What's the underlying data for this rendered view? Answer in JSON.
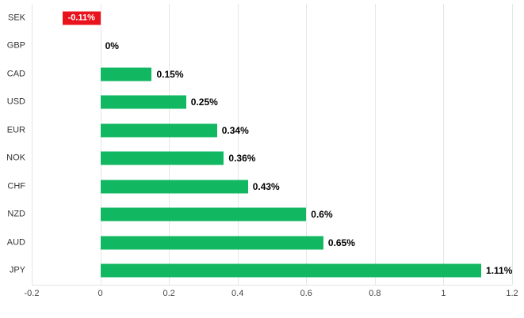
{
  "chart_data": {
    "type": "bar",
    "orientation": "horizontal",
    "title": "",
    "xlabel": "",
    "ylabel": "",
    "categories": [
      "SEK",
      "GBP",
      "CAD",
      "USD",
      "EUR",
      "NOK",
      "CHF",
      "NZD",
      "AUD",
      "JPY"
    ],
    "values": [
      -0.11,
      0,
      0.15,
      0.25,
      0.34,
      0.36,
      0.43,
      0.6,
      0.65,
      1.11
    ],
    "value_labels": [
      "-0.11%",
      "0%",
      "0.15%",
      "0.25%",
      "0.34%",
      "0.36%",
      "0.43%",
      "0.6%",
      "0.65%",
      "1.11%"
    ],
    "xlim": [
      -0.2,
      1.2
    ],
    "xticks": [
      -0.2,
      0,
      0.2,
      0.4,
      0.6,
      0.8,
      1,
      1.2
    ],
    "xtick_labels": [
      "-0.2",
      "0",
      "0.2",
      "0.4",
      "0.6",
      "0.8",
      "1",
      "1.2"
    ],
    "grid": true,
    "legend": false,
    "colors": {
      "positive_bar": "#12b761",
      "negative_bar": "#e8131d",
      "negative_label_text": "#ffffff",
      "value_label_text": "#000000",
      "gridline": "#e6e6e6",
      "background": "#ffffff"
    }
  }
}
